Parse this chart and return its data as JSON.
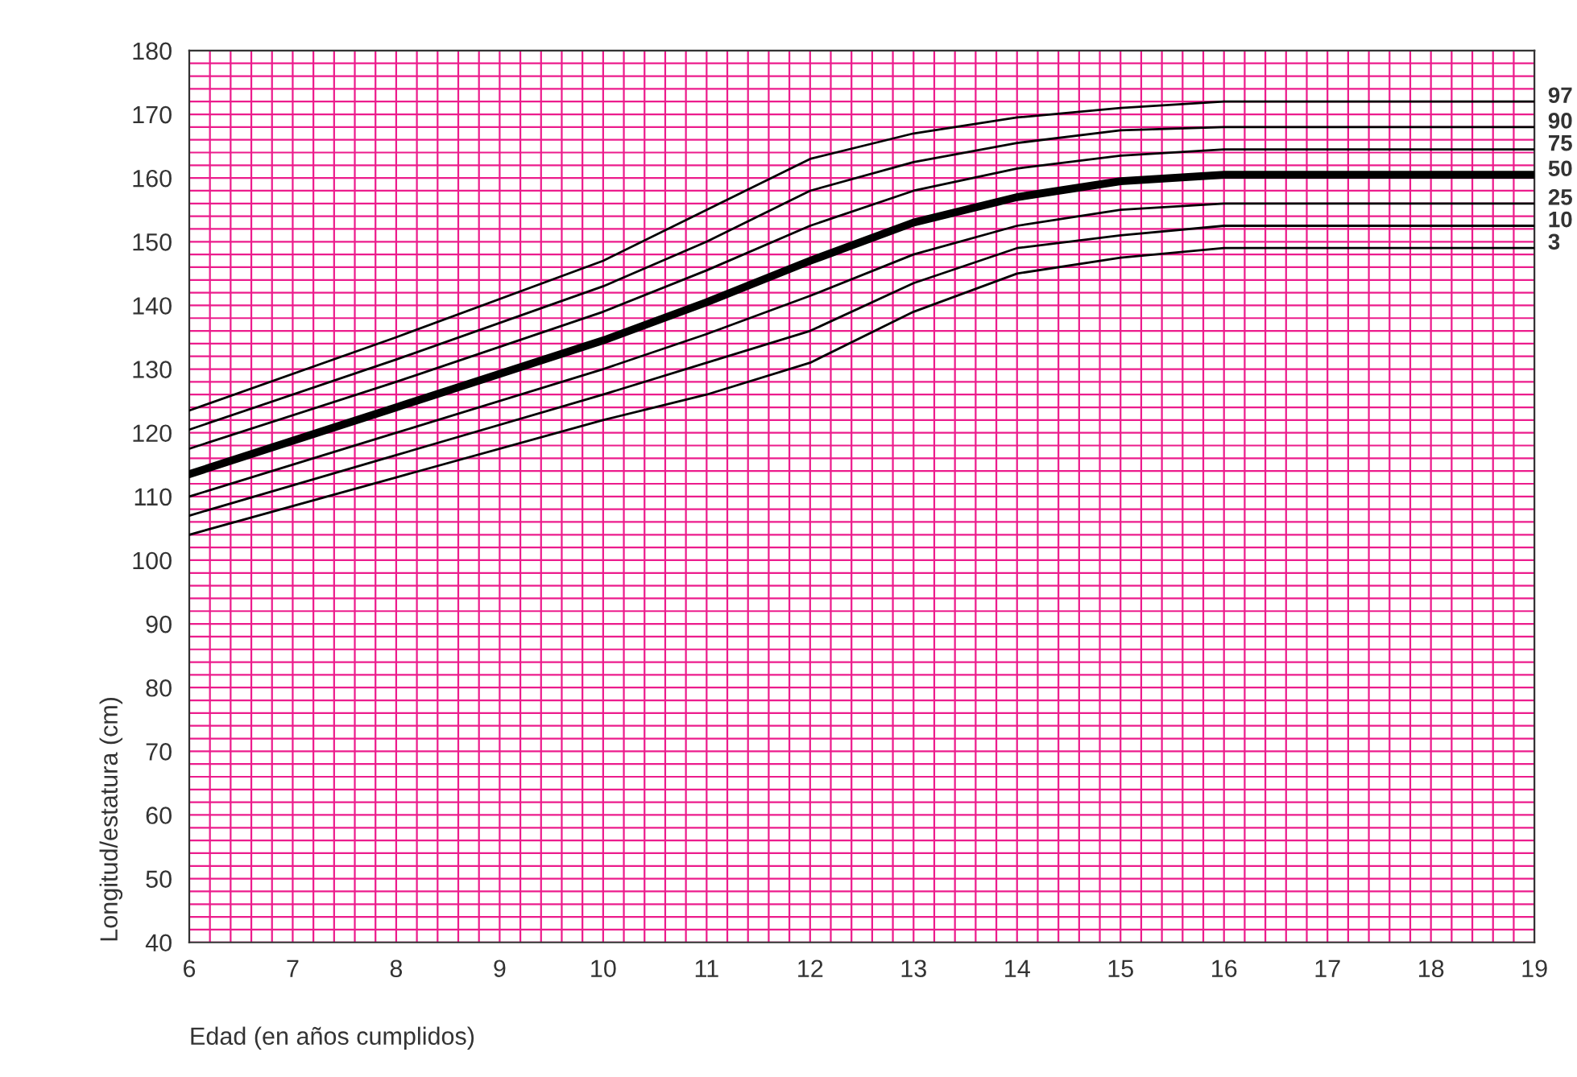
{
  "chart_data": {
    "type": "line",
    "xlabel": "Edad (en años cumplidos)",
    "ylabel": "Longitud/estatura (cm)",
    "x": [
      6,
      8,
      10,
      11,
      12,
      13,
      14,
      15,
      16,
      17,
      18,
      19
    ],
    "series": [
      {
        "name": "97",
        "color": "#000000",
        "values": [
          123.5,
          135,
          147,
          155,
          163,
          167,
          169.5,
          171,
          172,
          172,
          172,
          172
        ]
      },
      {
        "name": "90",
        "color": "#000000",
        "values": [
          120.5,
          131.5,
          143,
          150,
          158,
          162.5,
          165.5,
          167.5,
          168,
          168,
          168,
          168
        ]
      },
      {
        "name": "75",
        "color": "#000000",
        "values": [
          117.5,
          128,
          139,
          145.5,
          152.5,
          158,
          161.5,
          163.5,
          164.5,
          164.5,
          164.5,
          164.5
        ]
      },
      {
        "name": "50",
        "color": "#000000",
        "values": [
          113.5,
          124,
          134.5,
          140.5,
          147,
          153,
          157,
          159.5,
          160.5,
          160.5,
          160.5,
          160.5
        ]
      },
      {
        "name": "25",
        "color": "#000000",
        "values": [
          110,
          120,
          130,
          135.5,
          141.5,
          148,
          152.5,
          155,
          156,
          156,
          156,
          156
        ]
      },
      {
        "name": "10",
        "color": "#000000",
        "values": [
          107,
          116.5,
          126,
          131,
          136,
          143.5,
          149,
          151,
          152.5,
          152.5,
          152.5,
          152.5
        ]
      },
      {
        "name": "3",
        "color": "#000000",
        "values": [
          104,
          113,
          122,
          126,
          131,
          139,
          145,
          147.5,
          149,
          149,
          149,
          149
        ]
      }
    ],
    "xlim": [
      6,
      19
    ],
    "xticks": [
      6,
      7,
      8,
      9,
      10,
      11,
      12,
      13,
      14,
      15,
      16,
      17,
      18,
      19
    ],
    "ylim": [
      40,
      180
    ],
    "yticks": [
      40,
      50,
      60,
      70,
      80,
      90,
      100,
      110,
      120,
      130,
      140,
      150,
      160,
      170,
      180
    ],
    "grid": true,
    "legend": false,
    "marker": "none",
    "line_style": "solid"
  }
}
